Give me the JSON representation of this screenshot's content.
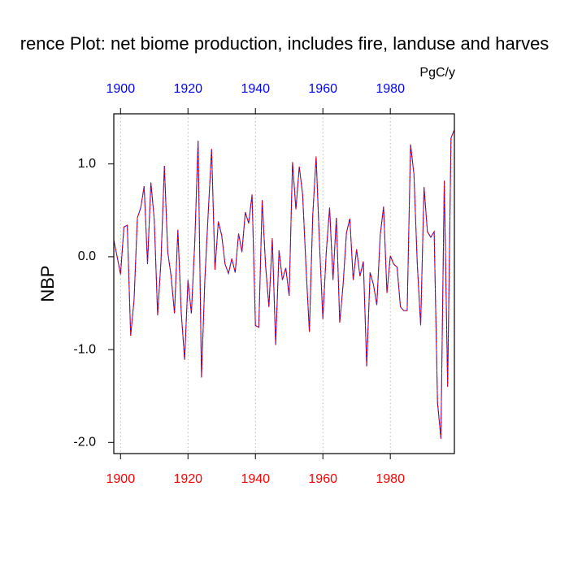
{
  "chart_data": {
    "type": "line",
    "title": "rence Plot: net biome production, includes fire, landuse and harves",
    "units": "PgC/y",
    "y_label": "NBP",
    "x": [
      1898,
      1899,
      1900,
      1901,
      1902,
      1903,
      1904,
      1905,
      1906,
      1907,
      1908,
      1909,
      1910,
      1911,
      1912,
      1913,
      1914,
      1915,
      1916,
      1917,
      1918,
      1919,
      1920,
      1921,
      1922,
      1923,
      1924,
      1925,
      1926,
      1927,
      1928,
      1929,
      1930,
      1931,
      1932,
      1933,
      1934,
      1935,
      1936,
      1937,
      1938,
      1939,
      1940,
      1941,
      1942,
      1943,
      1944,
      1945,
      1946,
      1947,
      1948,
      1949,
      1950,
      1951,
      1952,
      1953,
      1954,
      1955,
      1956,
      1957,
      1958,
      1959,
      1960,
      1961,
      1962,
      1963,
      1964,
      1965,
      1966,
      1967,
      1968,
      1969,
      1970,
      1971,
      1972,
      1973,
      1974,
      1975,
      1976,
      1977,
      1978,
      1979,
      1980,
      1981,
      1982,
      1983,
      1984,
      1985,
      1986,
      1987,
      1988,
      1989,
      1990,
      1991,
      1992,
      1993,
      1994,
      1995,
      1996,
      1997,
      1998,
      1999
    ],
    "series": [
      {
        "color": "#0000ff",
        "dashed": false,
        "values": [
          0.18,
          0.0,
          -0.19,
          0.32,
          0.34,
          -0.85,
          -0.47,
          0.42,
          0.53,
          0.76,
          -0.08,
          0.8,
          0.4,
          -0.63,
          -0.04,
          0.98,
          0.05,
          -0.21,
          -0.61,
          0.29,
          -0.6,
          -1.11,
          -0.25,
          -0.61,
          0.14,
          1.25,
          -1.3,
          -0.25,
          0.47,
          1.16,
          -0.14,
          0.38,
          0.23,
          -0.08,
          -0.18,
          -0.02,
          -0.17,
          0.25,
          0.05,
          0.48,
          0.36,
          0.67,
          -0.74,
          -0.76,
          0.61,
          -0.09,
          -0.54,
          0.2,
          -0.95,
          0.07,
          -0.25,
          -0.12,
          -0.42,
          1.02,
          0.51,
          0.97,
          0.67,
          -0.11,
          -0.81,
          0.45,
          1.08,
          0.14,
          -0.67,
          0.05,
          0.53,
          -0.25,
          0.42,
          -0.71,
          -0.3,
          0.26,
          0.41,
          -0.25,
          0.08,
          -0.21,
          -0.05,
          -1.18,
          -0.17,
          -0.3,
          -0.52,
          0.23,
          0.54,
          -0.39,
          0.01,
          -0.08,
          -0.11,
          -0.54,
          -0.58,
          -0.58,
          1.21,
          0.89,
          -0.08,
          -0.74,
          0.75,
          0.27,
          0.21,
          0.27,
          -1.57,
          -1.96,
          0.82,
          -1.4,
          1.28,
          1.37
        ]
      },
      {
        "color": "#ff0000",
        "dashed": true,
        "values": [
          0.18,
          0.0,
          -0.19,
          0.32,
          0.34,
          -0.85,
          -0.47,
          0.42,
          0.53,
          0.76,
          -0.08,
          0.8,
          0.4,
          -0.63,
          -0.04,
          0.98,
          0.05,
          -0.21,
          -0.61,
          0.29,
          -0.6,
          -1.11,
          -0.25,
          -0.61,
          0.14,
          1.25,
          -1.3,
          -0.25,
          0.47,
          1.16,
          -0.14,
          0.38,
          0.23,
          -0.08,
          -0.18,
          -0.02,
          -0.17,
          0.25,
          0.05,
          0.48,
          0.36,
          0.67,
          -0.74,
          -0.76,
          0.61,
          -0.09,
          -0.54,
          0.2,
          -0.95,
          0.07,
          -0.25,
          -0.12,
          -0.42,
          1.02,
          0.51,
          0.97,
          0.67,
          -0.11,
          -0.81,
          0.45,
          1.08,
          0.14,
          -0.67,
          0.05,
          0.53,
          -0.25,
          0.42,
          -0.71,
          -0.3,
          0.26,
          0.41,
          -0.25,
          0.08,
          -0.21,
          -0.05,
          -1.18,
          -0.17,
          -0.3,
          -0.52,
          0.23,
          0.54,
          -0.39,
          0.01,
          -0.08,
          -0.11,
          -0.54,
          -0.58,
          -0.58,
          1.21,
          0.89,
          -0.08,
          -0.74,
          0.75,
          0.27,
          0.21,
          0.27,
          -1.57,
          -1.96,
          0.82,
          -1.4,
          1.28,
          1.37
        ]
      }
    ],
    "xlim": [
      1898,
      1999
    ],
    "xticks": [
      1900,
      1920,
      1940,
      1960,
      1980
    ],
    "x2ticks": [
      1900,
      1920,
      1940,
      1960,
      1980
    ],
    "xtick_color": "#ff0000",
    "x2tick_color": "#0000ff",
    "ylim": [
      -2.12,
      1.54
    ],
    "yticks": [
      {
        "value": 1,
        "label": "1.0"
      },
      {
        "value": 0,
        "label": "0.0"
      },
      {
        "value": -1,
        "label": "-1.0"
      },
      {
        "value": -2,
        "label": "-2.0"
      }
    ],
    "grid": "x"
  }
}
